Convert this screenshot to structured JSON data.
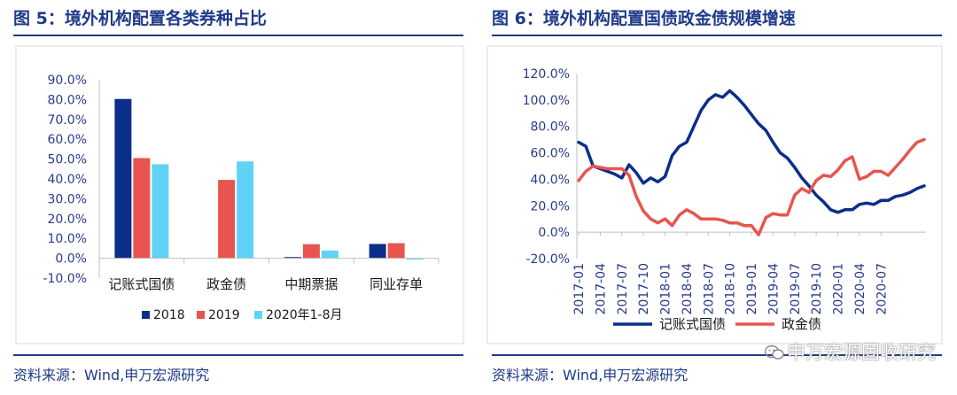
{
  "left": {
    "title": "图 5：境外机构配置各类券种占比",
    "source": "资料来源：Wind,申万宏源研究"
  },
  "right": {
    "title": "图 6：境外机构配置国债政金债规模增速",
    "source": "资料来源：Wind,申万宏源研究",
    "watermark": "申万宏源固收研究",
    "watermark_icon": "wechat-icon"
  },
  "colors": {
    "navy": "#0b2e8a",
    "red": "#e8554e",
    "cyan": "#5fd3f6",
    "title": "#1f3a8a",
    "axis": "#bfbfbf"
  },
  "chart_data": [
    {
      "type": "bar",
      "categories": [
        "记账式国债",
        "政金债",
        "中期票据",
        "同业存单"
      ],
      "series": [
        {
          "name": "2018",
          "values": [
            80.3,
            0.0,
            0.6,
            7.2
          ]
        },
        {
          "name": "2019",
          "values": [
            50.5,
            39.5,
            7.1,
            7.6
          ]
        },
        {
          "name": "2020年1-8月",
          "values": [
            47.4,
            48.8,
            3.9,
            -0.6
          ]
        }
      ],
      "y_ticks": [
        "90.0%",
        "80.0%",
        "70.0%",
        "60.0%",
        "50.0%",
        "40.0%",
        "30.0%",
        "20.0%",
        "10.0%",
        "0.0%",
        "-10.0%"
      ],
      "ylim": [
        -10,
        90
      ],
      "legend": "bottom"
    },
    {
      "type": "line",
      "x_ticks": [
        "2017-01",
        "2017-04",
        "2017-07",
        "2017-10",
        "2018-01",
        "2018-04",
        "2018-07",
        "2018-10",
        "2019-01",
        "2019-04",
        "2019-07",
        "2019-10",
        "2020-01",
        "2020-04",
        "2020-07"
      ],
      "y_ticks": [
        "120.0%",
        "100.0%",
        "80.0%",
        "60.0%",
        "40.0%",
        "20.0%",
        "0.0%",
        "-20.0%"
      ],
      "ylim": [
        -20,
        120
      ],
      "series": [
        {
          "name": "记账式国债",
          "values": [
            68,
            65,
            50,
            48,
            46,
            44,
            41,
            51,
            45,
            37,
            41,
            38,
            42,
            58,
            65,
            68,
            80,
            92,
            100,
            104,
            102,
            107,
            102,
            96,
            89,
            82,
            77,
            68,
            60,
            56,
            49,
            41,
            35,
            28,
            23,
            17,
            15,
            17,
            17,
            21,
            22,
            21,
            24,
            24,
            27,
            28,
            30,
            33,
            35
          ]
        },
        {
          "name": "政金债",
          "values": [
            39,
            46,
            50,
            49,
            48,
            48,
            48,
            43,
            27,
            16,
            10,
            7,
            10,
            5,
            13,
            17,
            14,
            10,
            10,
            10,
            9,
            7,
            7,
            5,
            5,
            -2,
            11,
            14,
            13,
            13,
            28,
            33,
            30,
            39,
            43,
            42,
            47,
            54,
            57,
            40,
            42,
            46,
            46,
            43,
            49,
            55,
            62,
            68,
            70
          ]
        }
      ],
      "legend": "bottom"
    }
  ]
}
